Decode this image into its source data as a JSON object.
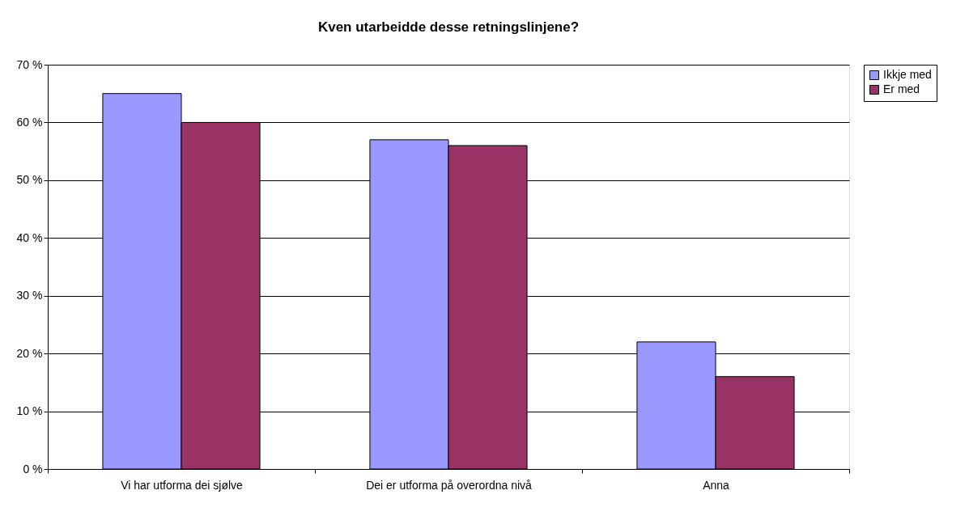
{
  "chart_data": {
    "type": "bar",
    "title": "Kven utarbeidde desse retningslinjene?",
    "categories": [
      "Vi har utforma dei sjølve",
      "Dei er utforma på overordna nivå",
      "Anna"
    ],
    "series": [
      {
        "name": "Ikkje med",
        "color": "#9999ff",
        "values": [
          65,
          57,
          22
        ]
      },
      {
        "name": "Er med",
        "color": "#993366",
        "values": [
          60,
          56,
          16
        ]
      }
    ],
    "ylim": [
      0,
      70
    ],
    "yticks": [
      {
        "value": 0,
        "label": "0 %"
      },
      {
        "value": 10,
        "label": "10 %"
      },
      {
        "value": 20,
        "label": "20 %"
      },
      {
        "value": 30,
        "label": "30 %"
      },
      {
        "value": 40,
        "label": "40 %"
      },
      {
        "value": 50,
        "label": "50 %"
      },
      {
        "value": 60,
        "label": "60 %"
      },
      {
        "value": 70,
        "label": "70 %"
      }
    ],
    "grid": "y",
    "legend": "right"
  }
}
